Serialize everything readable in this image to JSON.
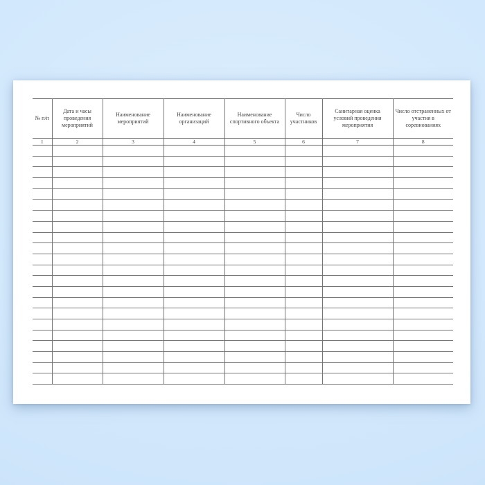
{
  "scene": {
    "background_color": "#d2e8fc",
    "paper_color": "#ffffff",
    "line_color": "#757575",
    "text_color": "#454545"
  },
  "table": {
    "columns": [
      {
        "num": "1",
        "label": "№ п/п"
      },
      {
        "num": "2",
        "label": "Дата и часы проведения мероприятий"
      },
      {
        "num": "3",
        "label": "Наименование мероприятий"
      },
      {
        "num": "4",
        "label": "Наименование организаций"
      },
      {
        "num": "5",
        "label": "Наименование спортивного объекта"
      },
      {
        "num": "6",
        "label": "Число участников"
      },
      {
        "num": "7",
        "label": "Санитарная оценка условий проведения мероприятия"
      },
      {
        "num": "8",
        "label": "Число отстраненных от участия в соревнованиях"
      }
    ],
    "empty_row_count": 22
  }
}
